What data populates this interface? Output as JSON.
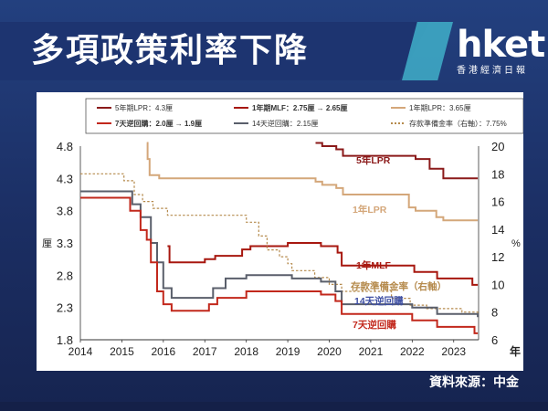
{
  "header": {
    "title": "多項政策利率下降",
    "logo": "hket",
    "logo_sub": "香港經濟日報"
  },
  "source": "資料來源：中金",
  "colors": {
    "lpr5": "#8b1a1a",
    "lpr1": "#d4a77a",
    "mlf": "#a7170f",
    "rrr": "#b58a4c",
    "rr14": "#5a5f6b",
    "rr7": "#c2281c"
  },
  "chart_data": {
    "type": "line",
    "legend": [
      "5年期LPR：4.3厘",
      "1年期MLF：2.75厘 → 2.65厘",
      "1年期LPR：3.65厘",
      "7天逆回購：2.0厘 → 1.9厘",
      "14天逆回購：2.15厘",
      "存款準備金率（右軸）：7.75%"
    ],
    "xlabel": "年",
    "ylabel_left": "厘",
    "ylabel_right": "%",
    "x_ticks": [
      "2014",
      "2015",
      "2016",
      "2017",
      "2018",
      "2019",
      "2020",
      "2021",
      "2022",
      "2023"
    ],
    "y_left_ticks": [
      "4.8",
      "4.3",
      "3.8",
      "3.3",
      "2.8",
      "2.3",
      "1.8"
    ],
    "y_right_ticks": [
      "20",
      "18",
      "16",
      "14",
      "12",
      "10",
      "8",
      "6"
    ],
    "xlim": [
      2014,
      2023.6
    ],
    "ylim_left": [
      1.8,
      4.8
    ],
    "ylim_right": [
      6,
      20
    ],
    "series": [
      {
        "name": "5年LPR",
        "key": "lpr5",
        "axis": "left",
        "dash": false,
        "points": [
          [
            2019.67,
            4.85
          ],
          [
            2019.83,
            4.8
          ],
          [
            2020.17,
            4.75
          ],
          [
            2020.33,
            4.65
          ],
          [
            2022.08,
            4.6
          ],
          [
            2022.42,
            4.45
          ],
          [
            2022.75,
            4.3
          ],
          [
            2023.58,
            4.3
          ]
        ]
      },
      {
        "name": "1年LPR",
        "key": "lpr1",
        "axis": "left",
        "dash": false,
        "points": [
          [
            2015.6,
            4.85
          ],
          [
            2015.62,
            4.6
          ],
          [
            2015.65,
            4.6
          ],
          [
            2015.67,
            4.35
          ],
          [
            2015.72,
            4.35
          ],
          [
            2015.75,
            4.35
          ],
          [
            2015.85,
            4.35
          ],
          [
            2015.9,
            4.3
          ],
          [
            2016.0,
            4.3
          ],
          [
            2016.2,
            4.3
          ],
          [
            2019.58,
            4.3
          ],
          [
            2019.67,
            4.25
          ],
          [
            2019.83,
            4.2
          ],
          [
            2020.17,
            4.15
          ],
          [
            2020.33,
            4.05
          ],
          [
            2021.92,
            3.85
          ],
          [
            2022.08,
            3.8
          ],
          [
            2022.58,
            3.7
          ],
          [
            2022.75,
            3.65
          ],
          [
            2023.58,
            3.65
          ]
        ]
      },
      {
        "name": "1年MLF",
        "key": "mlf",
        "axis": "left",
        "dash": false,
        "points": [
          [
            2016.1,
            3.25
          ],
          [
            2016.15,
            3.0
          ],
          [
            2016.2,
            3.0
          ],
          [
            2016.6,
            3.0
          ],
          [
            2017.0,
            3.05
          ],
          [
            2017.25,
            3.1
          ],
          [
            2017.9,
            3.2
          ],
          [
            2018.1,
            3.25
          ],
          [
            2019.0,
            3.3
          ],
          [
            2019.8,
            3.25
          ],
          [
            2020.2,
            3.15
          ],
          [
            2020.3,
            2.95
          ],
          [
            2021.9,
            2.95
          ],
          [
            2022.05,
            2.85
          ],
          [
            2022.6,
            2.75
          ],
          [
            2023.4,
            2.75
          ],
          [
            2023.45,
            2.65
          ],
          [
            2023.58,
            2.65
          ]
        ]
      },
      {
        "name": "存款準備金率（右軸）",
        "key": "rrr",
        "axis": "right",
        "dash": true,
        "points": [
          [
            2014.0,
            18.0
          ],
          [
            2015.05,
            17.5
          ],
          [
            2015.3,
            16.5
          ],
          [
            2015.5,
            16.0
          ],
          [
            2015.75,
            15.5
          ],
          [
            2016.1,
            15.0
          ],
          [
            2017.0,
            15.0
          ],
          [
            2018.0,
            14.5
          ],
          [
            2018.3,
            13.5
          ],
          [
            2018.5,
            12.5
          ],
          [
            2018.8,
            12.0
          ],
          [
            2019.0,
            11.5
          ],
          [
            2019.1,
            11.0
          ],
          [
            2019.65,
            10.5
          ],
          [
            2020.0,
            10.0
          ],
          [
            2020.3,
            9.5
          ],
          [
            2021.5,
            9.0
          ],
          [
            2021.95,
            8.5
          ],
          [
            2022.35,
            8.25
          ],
          [
            2023.2,
            8.0
          ],
          [
            2023.58,
            7.75
          ]
        ]
      },
      {
        "name": "14天逆回購",
        "key": "rr14",
        "axis": "left",
        "dash": false,
        "points": [
          [
            2014.0,
            4.1
          ],
          [
            2015.1,
            4.1
          ],
          [
            2015.25,
            3.9
          ],
          [
            2015.45,
            3.7
          ],
          [
            2015.7,
            3.3
          ],
          [
            2015.85,
            3.0
          ],
          [
            2016.0,
            2.6
          ],
          [
            2016.2,
            2.45
          ],
          [
            2017.0,
            2.45
          ],
          [
            2017.2,
            2.6
          ],
          [
            2017.5,
            2.75
          ],
          [
            2018.0,
            2.8
          ],
          [
            2019.1,
            2.75
          ],
          [
            2019.8,
            2.7
          ],
          [
            2020.15,
            2.55
          ],
          [
            2020.3,
            2.35
          ],
          [
            2022.0,
            2.3
          ],
          [
            2022.6,
            2.2
          ],
          [
            2023.58,
            2.15
          ]
        ]
      },
      {
        "name": "7天逆回購",
        "key": "rr7",
        "axis": "left",
        "dash": false,
        "points": [
          [
            2014.0,
            4.0
          ],
          [
            2015.05,
            4.0
          ],
          [
            2015.2,
            3.8
          ],
          [
            2015.45,
            3.5
          ],
          [
            2015.6,
            3.35
          ],
          [
            2015.7,
            3.0
          ],
          [
            2015.85,
            2.55
          ],
          [
            2016.0,
            2.35
          ],
          [
            2016.2,
            2.25
          ],
          [
            2017.0,
            2.25
          ],
          [
            2017.1,
            2.35
          ],
          [
            2017.3,
            2.45
          ],
          [
            2018.0,
            2.55
          ],
          [
            2019.1,
            2.55
          ],
          [
            2019.8,
            2.5
          ],
          [
            2020.15,
            2.4
          ],
          [
            2020.3,
            2.2
          ],
          [
            2022.0,
            2.1
          ],
          [
            2022.6,
            2.0
          ],
          [
            2023.4,
            2.0
          ],
          [
            2023.5,
            1.9
          ],
          [
            2023.58,
            1.9
          ]
        ]
      }
    ],
    "annotations": [
      {
        "text": "5年LPR",
        "key": "lpr5"
      },
      {
        "text": "1年LPR",
        "key": "lpr1"
      },
      {
        "text": "1年MLF",
        "key": "mlf"
      },
      {
        "text": "存款準備金率（右軸）",
        "key": "rrr"
      },
      {
        "text": "14天逆回購",
        "key": "rr14"
      },
      {
        "text": "7天逆回購",
        "key": "rr7"
      }
    ]
  }
}
